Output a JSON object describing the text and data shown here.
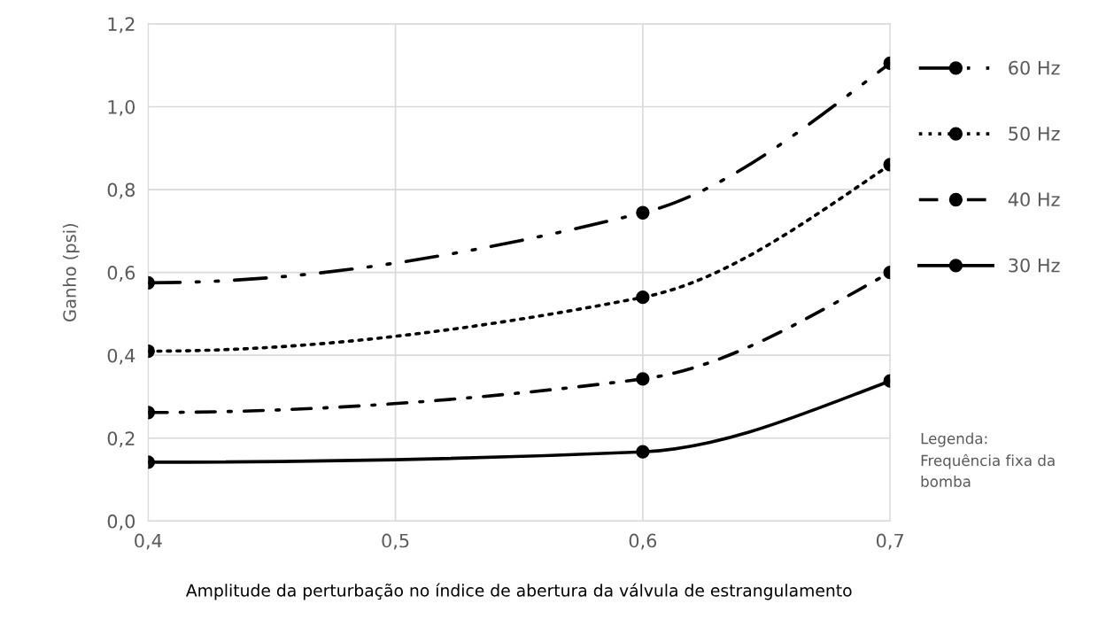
{
  "chart_data": {
    "type": "line",
    "xlabel": "Amplitude da perturbação no índice de abertura da válvula de estrangulamento",
    "ylabel": "Ganho (psi)",
    "x": [
      0.4,
      0.6,
      0.7
    ],
    "series": [
      {
        "name": "60 Hz",
        "color": "#000000",
        "line_style": "longdashdot",
        "values": [
          0.575,
          0.744,
          1.105
        ]
      },
      {
        "name": "50 Hz",
        "color": "#000000",
        "line_style": "dotted",
        "values": [
          0.41,
          0.54,
          0.86
        ]
      },
      {
        "name": "40 Hz",
        "color": "#000000",
        "line_style": "dashdot",
        "values": [
          0.262,
          0.343,
          0.6
        ]
      },
      {
        "name": "30 Hz",
        "color": "#000000",
        "line_style": "solid",
        "values": [
          0.142,
          0.167,
          0.338
        ]
      }
    ],
    "xlim": [
      0.4,
      0.7
    ],
    "xticks": [
      {
        "value": 0.4,
        "label": "0,4"
      },
      {
        "value": 0.5,
        "label": "0,5"
      },
      {
        "value": 0.6,
        "label": "0,6"
      },
      {
        "value": 0.7,
        "label": "0,7"
      }
    ],
    "ylim": [
      0,
      1.2
    ],
    "yticks": [
      {
        "value": 0,
        "label": "0,0"
      },
      {
        "value": 0.2,
        "label": "0,2"
      },
      {
        "value": 0.4,
        "label": "0,4"
      },
      {
        "value": 0.6,
        "label": "0,6"
      },
      {
        "value": 0.8,
        "label": "0,8"
      },
      {
        "value": 1.0,
        "label": "1,0"
      },
      {
        "value": 1.2,
        "label": "1,2"
      }
    ],
    "grid": true,
    "marker": "circle",
    "legend": "right",
    "annotations": [
      "Legenda:\nFrequência fixa da\nbomba"
    ]
  }
}
